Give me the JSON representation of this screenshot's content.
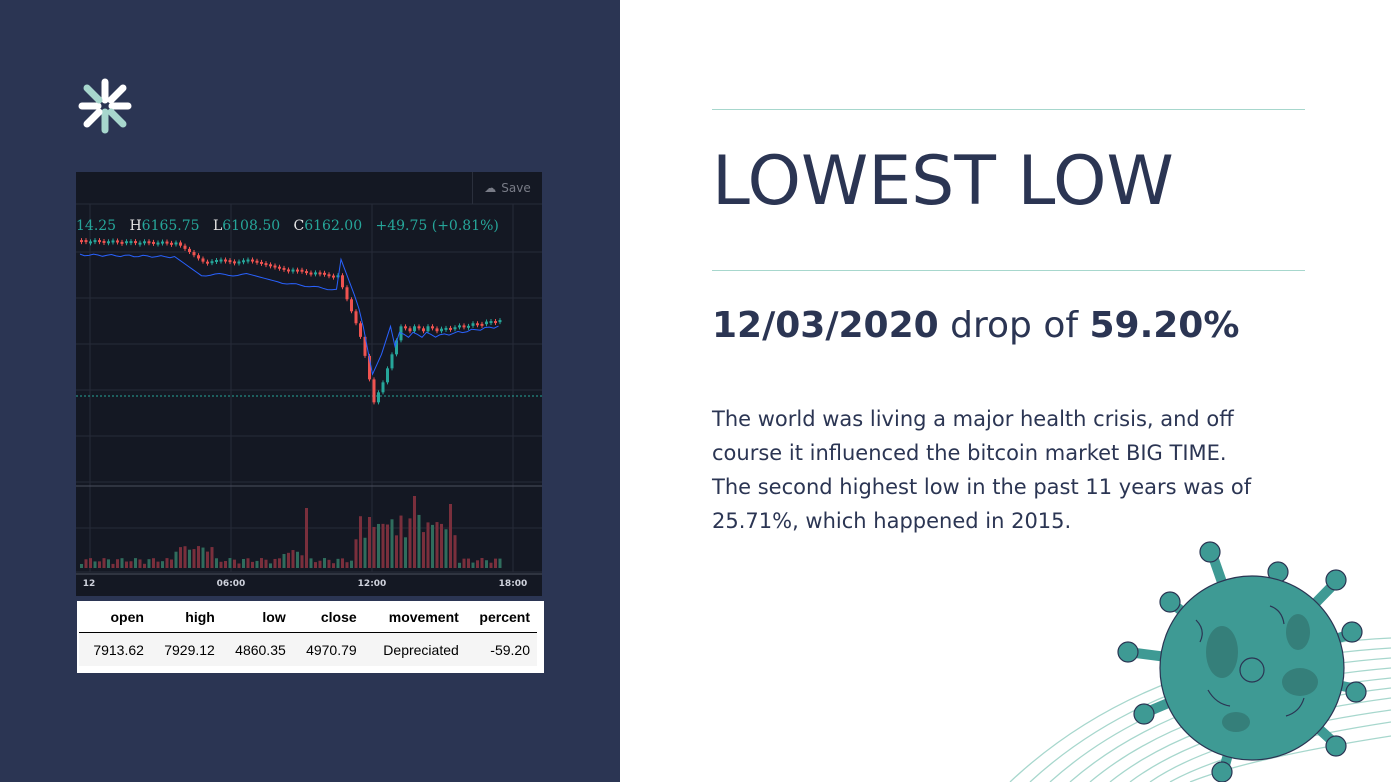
{
  "slide": {
    "title": "LOWEST LOW",
    "subtitle": {
      "date": "12/03/2020",
      "middle": " drop of ",
      "percent": "59.20%"
    },
    "body": "The world was living a major health crisis, and off course it influenced the bitcoin market BIG TIME. The second highest low in the past 11 years was of 25.71%, which happened in 2015."
  },
  "chart": {
    "save_label": "Save",
    "ohlc": {
      "partial_open": "14.25",
      "h_key": "H",
      "h": "6165.75",
      "l_key": "L",
      "l": "6108.50",
      "c_key": "C",
      "c": "6162.00",
      "change": "+49.75 (+0.81%)"
    },
    "time_labels": [
      "12",
      "06:00",
      "12:00",
      "18:00"
    ],
    "colors": {
      "up": "#26a69a",
      "down": "#ef5350",
      "ma": "#2962ff",
      "bg": "#141823"
    }
  },
  "table": {
    "headers": [
      "open",
      "high",
      "low",
      "close",
      "movement",
      "percent"
    ],
    "row": [
      "7913.62",
      "7929.12",
      "4860.35",
      "4970.79",
      "Depreciated",
      "-59.20"
    ]
  },
  "colors": {
    "navy": "#2b3553",
    "teal": "#3e9a94",
    "rule": "#a7d7cd"
  }
}
